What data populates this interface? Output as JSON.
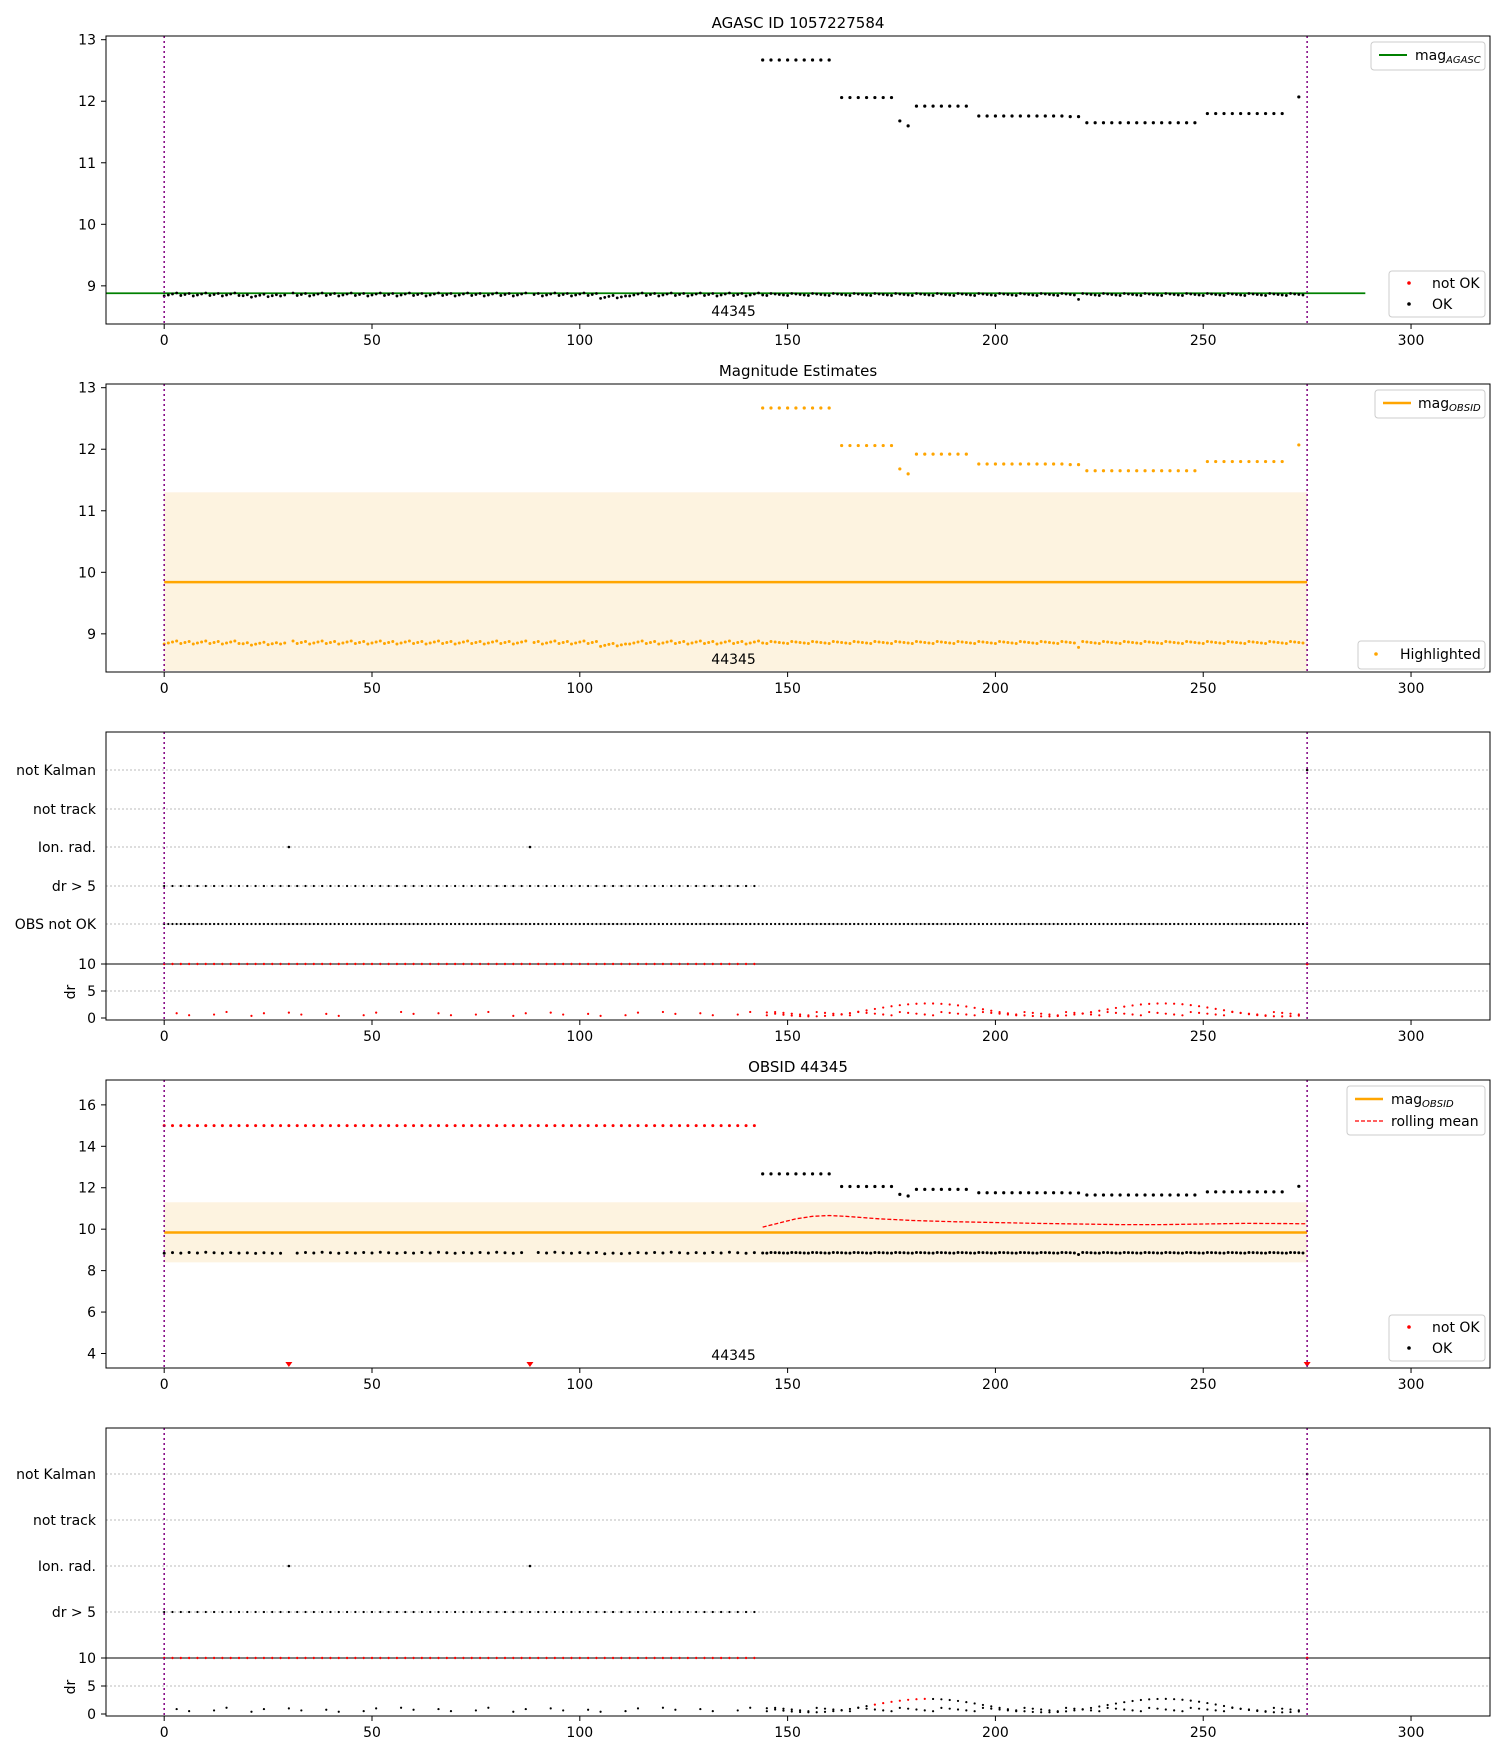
{
  "colors": {
    "ok": "#000000",
    "not_ok": "#ff0000",
    "agasc_line": "#008000",
    "obsid_line": "#ffa500",
    "band": "#fdf3e0",
    "boundary": "#800080",
    "grid": "#bbbbbb"
  },
  "chart_data": [
    {
      "id": "agasc",
      "type": "scatter",
      "title": "AGASC ID 1057227584",
      "xlim": [
        -14,
        319
      ],
      "ylim": [
        8.38,
        13.06
      ],
      "xticks": [
        0,
        50,
        100,
        150,
        200,
        250,
        300
      ],
      "yticks": [
        9,
        10,
        11,
        12,
        13
      ],
      "obsid_label": "44345",
      "boundaries": [
        0,
        275
      ],
      "mag_agasc": 8.88,
      "mag_agasc_x": [
        -14,
        289
      ],
      "series": [
        {
          "name": "not OK",
          "values": []
        },
        {
          "name": "OK",
          "ref": "mags"
        }
      ],
      "legend": {
        "top": {
          "label": "mag",
          "subscript": "AGASC",
          "placement": "top-right"
        },
        "bottom": [
          {
            "label": "not OK"
          },
          {
            "label": "OK"
          }
        ]
      }
    },
    {
      "id": "estimates",
      "type": "scatter",
      "title": "Magnitude Estimates",
      "xlim": [
        -14,
        319
      ],
      "ylim": [
        8.38,
        13.06
      ],
      "xticks": [
        0,
        50,
        100,
        150,
        200,
        250,
        300
      ],
      "yticks": [
        9,
        10,
        11,
        12,
        13
      ],
      "obsid_label": "44345",
      "boundaries": [
        0,
        275
      ],
      "mag_obsid": 9.84,
      "band": [
        8.4,
        11.3
      ],
      "series": [
        {
          "name": "Highlighted",
          "ref": "mags"
        }
      ],
      "legend": {
        "top": {
          "label": "mag",
          "subscript": "OBSID",
          "placement": "top-right"
        },
        "bottom": [
          {
            "label": "Highlighted"
          }
        ]
      }
    },
    {
      "id": "flags1",
      "type": "scatter",
      "categories": [
        "OBS not OK",
        "dr > 5",
        "Ion. rad.",
        "not track",
        "not Kalman"
      ],
      "xlim": [
        -14,
        319
      ],
      "xticks": [
        0,
        50,
        100,
        150,
        200,
        250,
        300
      ],
      "boundaries": [
        0,
        275
      ],
      "obs_not_ok_range": [
        0,
        275
      ],
      "dr_gt5_range": [
        0,
        143
      ],
      "ion_rad_x": [
        30,
        88
      ],
      "not_kalman_x": [
        275
      ],
      "dr_ylabel": "dr",
      "dr_yticks": [
        0,
        5,
        10
      ],
      "dr_ylim": [
        0,
        10
      ]
    },
    {
      "id": "obsid",
      "type": "scatter",
      "title": "OBSID 44345",
      "xlim": [
        -14,
        319
      ],
      "ylim": [
        3.3,
        17.2
      ],
      "xticks": [
        0,
        50,
        100,
        150,
        200,
        250,
        300
      ],
      "yticks": [
        4,
        6,
        8,
        10,
        12,
        14,
        16
      ],
      "obsid_label": "44345",
      "boundaries": [
        0,
        275
      ],
      "mag_obsid": 9.84,
      "band": [
        8.4,
        11.3
      ],
      "not_ok_value": 15.0,
      "not_ok_range": [
        0,
        143
      ],
      "markers_x": [
        30,
        88,
        275
      ],
      "series": [
        {
          "name": "not OK",
          "note": "mag 15 for x in not_ok_range"
        },
        {
          "name": "OK",
          "ref": "mags"
        },
        {
          "name": "rolling mean",
          "ref": "rolling"
        }
      ],
      "legend": {
        "top": [
          {
            "label": "mag",
            "subscript": "OBSID"
          },
          {
            "label": "rolling mean"
          }
        ],
        "bottom": [
          {
            "label": "not OK"
          },
          {
            "label": "OK"
          }
        ]
      }
    },
    {
      "id": "flags2",
      "type": "scatter",
      "categories": [
        "dr > 5",
        "Ion. rad.",
        "not track",
        "not Kalman"
      ],
      "xlim": [
        -14,
        319
      ],
      "xticks": [
        0,
        50,
        100,
        150,
        200,
        250,
        300
      ],
      "boundaries": [
        0,
        275
      ],
      "dr_gt5_range": [
        0,
        143
      ],
      "ion_rad_x": [
        30,
        88
      ],
      "not_kalman_x": [
        275
      ],
      "dr_ylabel": "dr",
      "dr_yticks": [
        0,
        5,
        10
      ],
      "dr_ylim": [
        0,
        10
      ]
    }
  ],
  "mags": [
    [
      144,
      12.67
    ],
    [
      146,
      12.67
    ],
    [
      148,
      12.67
    ],
    [
      150,
      12.67
    ],
    [
      152,
      12.67
    ],
    [
      154,
      12.67
    ],
    [
      156,
      12.67
    ],
    [
      158,
      12.67
    ],
    [
      160,
      12.67
    ],
    [
      163,
      12.06
    ],
    [
      165,
      12.06
    ],
    [
      167,
      12.06
    ],
    [
      169,
      12.06
    ],
    [
      171,
      12.06
    ],
    [
      173,
      12.06
    ],
    [
      175,
      12.06
    ],
    [
      177,
      11.68
    ],
    [
      179,
      11.6
    ],
    [
      181,
      11.92
    ],
    [
      183,
      11.92
    ],
    [
      185,
      11.92
    ],
    [
      187,
      11.92
    ],
    [
      189,
      11.92
    ],
    [
      191,
      11.92
    ],
    [
      193,
      11.92
    ],
    [
      196,
      11.76
    ],
    [
      198,
      11.76
    ],
    [
      200,
      11.76
    ],
    [
      202,
      11.76
    ],
    [
      204,
      11.76
    ],
    [
      206,
      11.76
    ],
    [
      208,
      11.76
    ],
    [
      210,
      11.76
    ],
    [
      212,
      11.76
    ],
    [
      214,
      11.76
    ],
    [
      216,
      11.76
    ],
    [
      218,
      11.75
    ],
    [
      220,
      11.75
    ],
    [
      222,
      11.65
    ],
    [
      224,
      11.65
    ],
    [
      226,
      11.65
    ],
    [
      228,
      11.65
    ],
    [
      230,
      11.65
    ],
    [
      232,
      11.65
    ],
    [
      234,
      11.65
    ],
    [
      236,
      11.65
    ],
    [
      238,
      11.65
    ],
    [
      240,
      11.65
    ],
    [
      242,
      11.65
    ],
    [
      244,
      11.65
    ],
    [
      246,
      11.65
    ],
    [
      248,
      11.65
    ],
    [
      251,
      11.8
    ],
    [
      253,
      11.8
    ],
    [
      255,
      11.8
    ],
    [
      257,
      11.8
    ],
    [
      259,
      11.8
    ],
    [
      261,
      11.8
    ],
    [
      263,
      11.8
    ],
    [
      265,
      11.8
    ],
    [
      267,
      11.8
    ],
    [
      269,
      11.8
    ],
    [
      273,
      12.07
    ]
  ],
  "rolling": [
    [
      144,
      10.1
    ],
    [
      148,
      10.3
    ],
    [
      152,
      10.5
    ],
    [
      156,
      10.62
    ],
    [
      160,
      10.66
    ],
    [
      164,
      10.62
    ],
    [
      168,
      10.56
    ],
    [
      172,
      10.5
    ],
    [
      176,
      10.46
    ],
    [
      180,
      10.42
    ],
    [
      190,
      10.36
    ],
    [
      200,
      10.32
    ],
    [
      210,
      10.28
    ],
    [
      220,
      10.25
    ],
    [
      230,
      10.22
    ],
    [
      240,
      10.22
    ],
    [
      250,
      10.25
    ],
    [
      260,
      10.28
    ],
    [
      270,
      10.27
    ],
    [
      275,
      10.26
    ]
  ]
}
